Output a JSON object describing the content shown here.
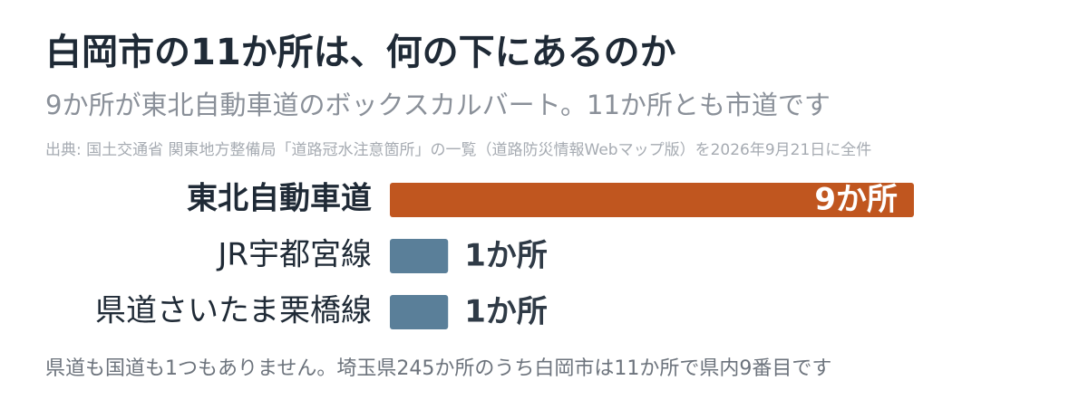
{
  "chart_data": {
    "type": "hbar",
    "title": "白岡市の11か所は、何の下にあるのか",
    "subtitle": "9か所が東北自動車道のボックスカルバート。11か所とも市道です",
    "source": "出典: 国土交通省 関東地方整備局「道路冠水注意箇所」の一覧（道路防災情報Webマップ版）を2026年9月21日に全件",
    "categories": [
      "東北自動車道",
      "JR宇都宮線",
      "県道さいたま栗橋線"
    ],
    "values": [
      9,
      1,
      1
    ],
    "value_labels": [
      "9か所",
      "1か所",
      "1か所"
    ],
    "colors": [
      "#c0561f",
      "#5a7f99",
      "#5a7f99"
    ],
    "note": "県道も国道も1つもありません。埼玉県245か所のうち白岡市は11か所で県内9番目です"
  }
}
